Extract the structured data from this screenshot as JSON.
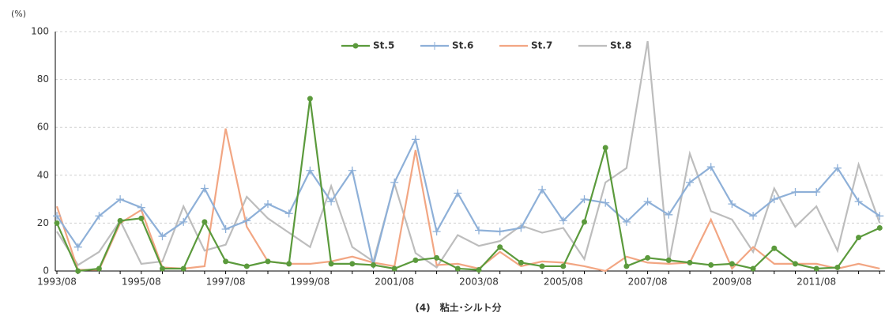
{
  "chart_data": {
    "type": "line",
    "title": "(4)　粘土･シルト分",
    "y_label": "(%)",
    "categories": [
      "1993/08",
      null,
      null,
      null,
      "1995/08",
      null,
      null,
      null,
      "1997/08",
      null,
      null,
      null,
      "1999/08",
      null,
      null,
      null,
      "2001/08",
      null,
      null,
      null,
      "2003/08",
      null,
      null,
      null,
      "2005/08",
      null,
      null,
      null,
      "2007/08",
      null,
      null,
      null,
      "2009/08",
      null,
      null,
      null,
      "2011/08",
      null,
      null,
      null
    ],
    "series": [
      {
        "name": "St.5",
        "color": "#5b9a3c",
        "marker": "circle",
        "values": [
          20,
          0,
          1,
          21,
          22,
          1,
          1,
          20.5,
          4,
          2,
          4,
          3,
          72,
          3,
          3,
          2.5,
          1,
          4.5,
          5.5,
          1,
          0.5,
          10,
          3.5,
          2,
          2,
          20.5,
          51.5,
          2,
          5.5,
          4.5,
          3.5,
          2.5,
          3,
          1,
          9.5,
          3,
          1,
          1.5,
          14,
          18
        ]
      },
      {
        "name": "St.6",
        "color": "#8eb0d8",
        "marker": "plus",
        "values": [
          23,
          10,
          23,
          30,
          26.5,
          14.5,
          20.5,
          34.5,
          17.5,
          21,
          28,
          24,
          42,
          29,
          42,
          2.5,
          37,
          55,
          16.5,
          32.5,
          17,
          16.5,
          18,
          34,
          21,
          30,
          28.5,
          20.5,
          29,
          23.5,
          37,
          43.5,
          28,
          23,
          30,
          33,
          33,
          43,
          29,
          23
        ]
      },
      {
        "name": "St.7",
        "color": "#f2a683",
        "marker": "none",
        "values": [
          27,
          0.5,
          0.5,
          20,
          25.5,
          1.5,
          1,
          2,
          59.5,
          18.5,
          4,
          3,
          3,
          4,
          6,
          3.5,
          2,
          50.5,
          2.5,
          3,
          1,
          8,
          2,
          4,
          3.5,
          2,
          0,
          6,
          3.5,
          3,
          3.5,
          21.5,
          1,
          10,
          3,
          3,
          3,
          1,
          3,
          1
        ]
      },
      {
        "name": "St.8",
        "color": "#bdbdbd",
        "marker": "none",
        "values": [
          16.5,
          2.5,
          8,
          21,
          3,
          4,
          27,
          8.5,
          11,
          31,
          22,
          16,
          10,
          35.5,
          10,
          4,
          36.5,
          7.5,
          1.5,
          15,
          10.5,
          12.5,
          19,
          16,
          18,
          5,
          37,
          43,
          96,
          3,
          49,
          25,
          21.5,
          8,
          34.5,
          18.5,
          27,
          8.5,
          44.5,
          20
        ]
      }
    ],
    "ylim": [
      0,
      100
    ],
    "yticks": [
      0,
      20,
      40,
      60,
      80,
      100
    ],
    "grid": true,
    "legend": "top"
  }
}
